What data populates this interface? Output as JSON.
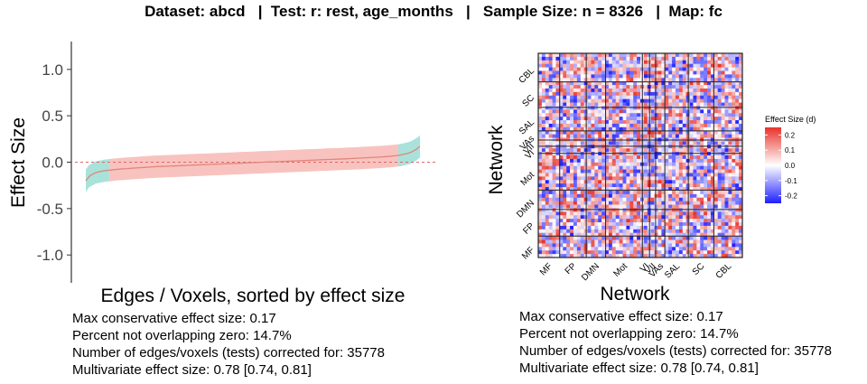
{
  "title": "Dataset: abcd   |  Test: r: rest, age_months   |   Sample Size: n = 8326   |  Map: fc",
  "chart_data": [
    {
      "type": "line",
      "xlabel": "Edges / Voxels, sorted by effect size",
      "ylabel": "Effect Size",
      "ylim": [
        -1.3,
        1.3
      ],
      "y_ticks": [
        "1.0",
        "0.5",
        "0.0",
        "-0.5",
        "-1.0"
      ],
      "y_tick_values": [
        1.0,
        0.5,
        0.0,
        -0.5,
        -1.0
      ],
      "reference_line": 0.0,
      "n_points": 35778,
      "series": [
        {
          "x": [
            0,
            0.01,
            0.03,
            0.06,
            0.1,
            0.2,
            0.3,
            0.4,
            0.5,
            0.6,
            0.7,
            0.8,
            0.9,
            0.94,
            0.97,
            0.99,
            1.0
          ],
          "values": [
            -0.2,
            -0.15,
            -0.11,
            -0.09,
            -0.075,
            -0.05,
            -0.035,
            -0.02,
            -0.005,
            0.01,
            0.025,
            0.04,
            0.06,
            0.075,
            0.1,
            0.14,
            0.17
          ],
          "ci_lower": [
            -0.32,
            -0.27,
            -0.23,
            -0.21,
            -0.195,
            -0.17,
            -0.155,
            -0.14,
            -0.125,
            -0.11,
            -0.095,
            -0.08,
            -0.06,
            -0.045,
            -0.02,
            0.02,
            0.05
          ],
          "ci_upper": [
            -0.08,
            -0.03,
            0.01,
            0.03,
            0.045,
            0.07,
            0.085,
            0.1,
            0.115,
            0.13,
            0.145,
            0.16,
            0.18,
            0.195,
            0.22,
            0.26,
            0.29
          ]
        }
      ],
      "band_colors": {
        "overlapping_zero": "#f8c3bf",
        "not_overlapping_zero": "#a9e2da"
      },
      "line_color": "#e3847b",
      "not_overlapping_x_ranges": [
        [
          0,
          0.07
        ],
        [
          0.935,
          1.0
        ]
      ]
    },
    {
      "type": "heatmap",
      "xlabel": "Network",
      "ylabel": "Network",
      "x_categories": [
        "MF",
        "FP",
        "DMN",
        "Mot",
        "VI",
        "VII",
        "VAs",
        "SAL",
        "SC",
        "CBL"
      ],
      "y_categories": [
        "CBL",
        "SC",
        "SAL",
        "VAs",
        "VII",
        "VI",
        "Mot",
        "DMN",
        "FP",
        "MF"
      ],
      "legend_title": "Effect Size (d)",
      "legend_ticks": [
        "0.2",
        "0.1",
        "0.0",
        "-0.1",
        "-0.2"
      ],
      "legend_tick_values": [
        0.2,
        0.1,
        0.0,
        -0.1,
        -0.2
      ],
      "color_range": [
        -0.25,
        0.25
      ],
      "colors": {
        "low": "#1f1fff",
        "mid": "#ffffff",
        "high": "#e8322a"
      }
    }
  ],
  "stats_left": [
    "Max conservative effect size: 0.17",
    "Percent not overlapping zero: 14.7%",
    "Number of edges/voxels (tests) corrected for: 35778",
    "Multivariate effect size: 0.78 [0.74, 0.81]"
  ],
  "stats_right": [
    "Max conservative effect size: 0.17",
    "Percent not overlapping zero: 14.7%",
    "Number of edges/voxels (tests) corrected for: 35778",
    "Multivariate effect size: 0.78 [0.74, 0.81]"
  ]
}
